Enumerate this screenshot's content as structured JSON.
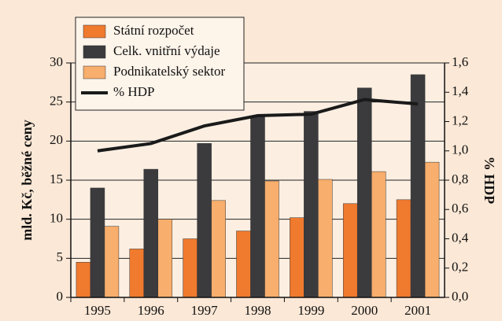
{
  "chart_data": {
    "type": "bar",
    "categories": [
      "1995",
      "1996",
      "1997",
      "1998",
      "1999",
      "2000",
      "2001"
    ],
    "series": [
      {
        "name": "Státní rozpočet",
        "color": "#f07a2e",
        "values": [
          4.5,
          6.2,
          7.5,
          8.5,
          10.2,
          12.0,
          12.5
        ]
      },
      {
        "name": "Celk. vnitřní výdaje",
        "color": "#3b3b3d",
        "values": [
          14.0,
          16.4,
          19.7,
          23.2,
          23.8,
          26.8,
          28.5
        ]
      },
      {
        "name": "Podnikatelský sektor",
        "color": "#f8ae6c",
        "values": [
          9.1,
          10.0,
          12.4,
          14.9,
          15.1,
          16.1,
          17.3
        ]
      },
      {
        "name": "% HDP",
        "color": "#1a1a1a",
        "type": "line",
        "axis": "y2",
        "values": [
          1.0,
          1.05,
          1.17,
          1.24,
          1.25,
          1.35,
          1.32
        ]
      }
    ],
    "ylabel": "mld. Kč, běžné ceny",
    "y2label": "% HDP",
    "ylim": [
      0,
      30
    ],
    "yticks": [
      0,
      5,
      10,
      15,
      20,
      25,
      30
    ],
    "y2lim": [
      0,
      1.6
    ],
    "y2ticks": [
      {
        "value": 0,
        "label": "0,0"
      },
      {
        "value": 0.2,
        "label": "0,2"
      },
      {
        "value": 0.4,
        "label": "0,4"
      },
      {
        "value": 0.6,
        "label": "0,6"
      },
      {
        "value": 0.8,
        "label": "0,8"
      },
      {
        "value": 1.0,
        "label": "1,0"
      },
      {
        "value": 1.2,
        "label": "1,2"
      },
      {
        "value": 1.4,
        "label": "1,4"
      },
      {
        "value": 1.6,
        "label": "1,6"
      }
    ],
    "grid": true,
    "legend": "top-left"
  }
}
